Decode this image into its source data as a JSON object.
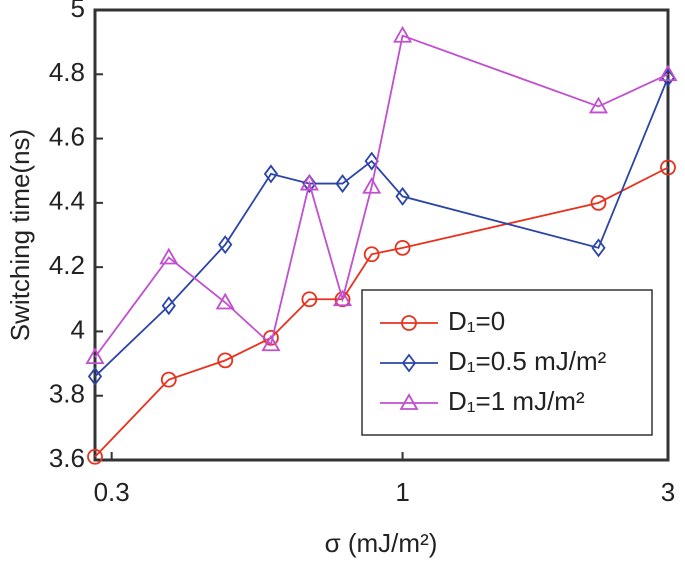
{
  "chart_data": {
    "type": "line",
    "x_label": "σ (mJ/m²)",
    "y_label": "Switching time(ns)",
    "x": [
      0.28,
      0.38,
      0.48,
      0.58,
      0.68,
      0.78,
      0.88,
      1.0,
      2.25,
      3
    ],
    "xscale": "log",
    "xlim": [
      0.28,
      3
    ],
    "xticks": [
      0.3,
      1,
      3
    ],
    "ylim": [
      3.6,
      5
    ],
    "yticks": [
      3.6,
      3.8,
      4,
      4.2,
      4.4,
      4.6,
      4.8,
      5
    ],
    "legend": "lower right",
    "series": [
      {
        "name": "D₁=0",
        "color": "#e8321e",
        "marker": "circle",
        "values": [
          3.61,
          3.85,
          3.91,
          3.98,
          4.1,
          4.1,
          4.24,
          4.26,
          4.4,
          4.51
        ]
      },
      {
        "name": "D₁=0.5 mJ/m²",
        "color": "#2b44a8",
        "marker": "diamond",
        "values": [
          3.86,
          4.08,
          4.27,
          4.49,
          4.46,
          4.46,
          4.53,
          4.42,
          4.26,
          4.79
        ]
      },
      {
        "name": "D₁=1 mJ/m²",
        "color": "#c14fd0",
        "marker": "triangle",
        "values": [
          3.92,
          4.23,
          4.09,
          3.96,
          4.46,
          4.1,
          4.45,
          4.92,
          4.7,
          4.8
        ]
      }
    ]
  }
}
